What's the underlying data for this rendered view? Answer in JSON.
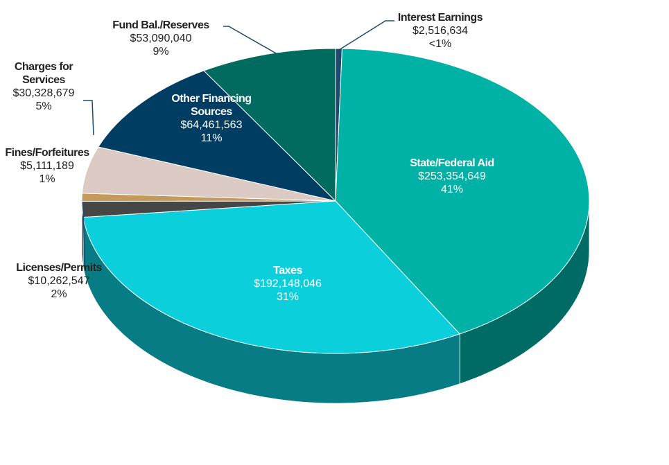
{
  "chart_data": {
    "type": "pie3d",
    "categories": [
      "Interest Earnings",
      "State/Federal Aid",
      "Taxes",
      "Licenses/Permits",
      "Fines/Forfeitures",
      "Charges for Services",
      "Other Financing Sources",
      "Fund Bal./Reserves"
    ],
    "values": [
      2516634,
      253354649,
      192148046,
      10262547,
      5111189,
      30328679,
      64461563,
      53090040
    ],
    "value_labels": [
      "$2,516,634",
      "$253,354,649",
      "$192,148,046",
      "$10,262,547",
      "$5,111,189",
      "$30,328,679",
      "$64,461,563",
      "$53,090,040"
    ],
    "percent_labels": [
      "<1%",
      "41%",
      "31%",
      "2%",
      "1%",
      "5%",
      "11%",
      "9%"
    ],
    "colors": [
      "#1d4a6e",
      "#00b2a6",
      "#0ccfdc",
      "#464646",
      "#c49a5a",
      "#dccac4",
      "#003d63",
      "#006b5e"
    ]
  }
}
